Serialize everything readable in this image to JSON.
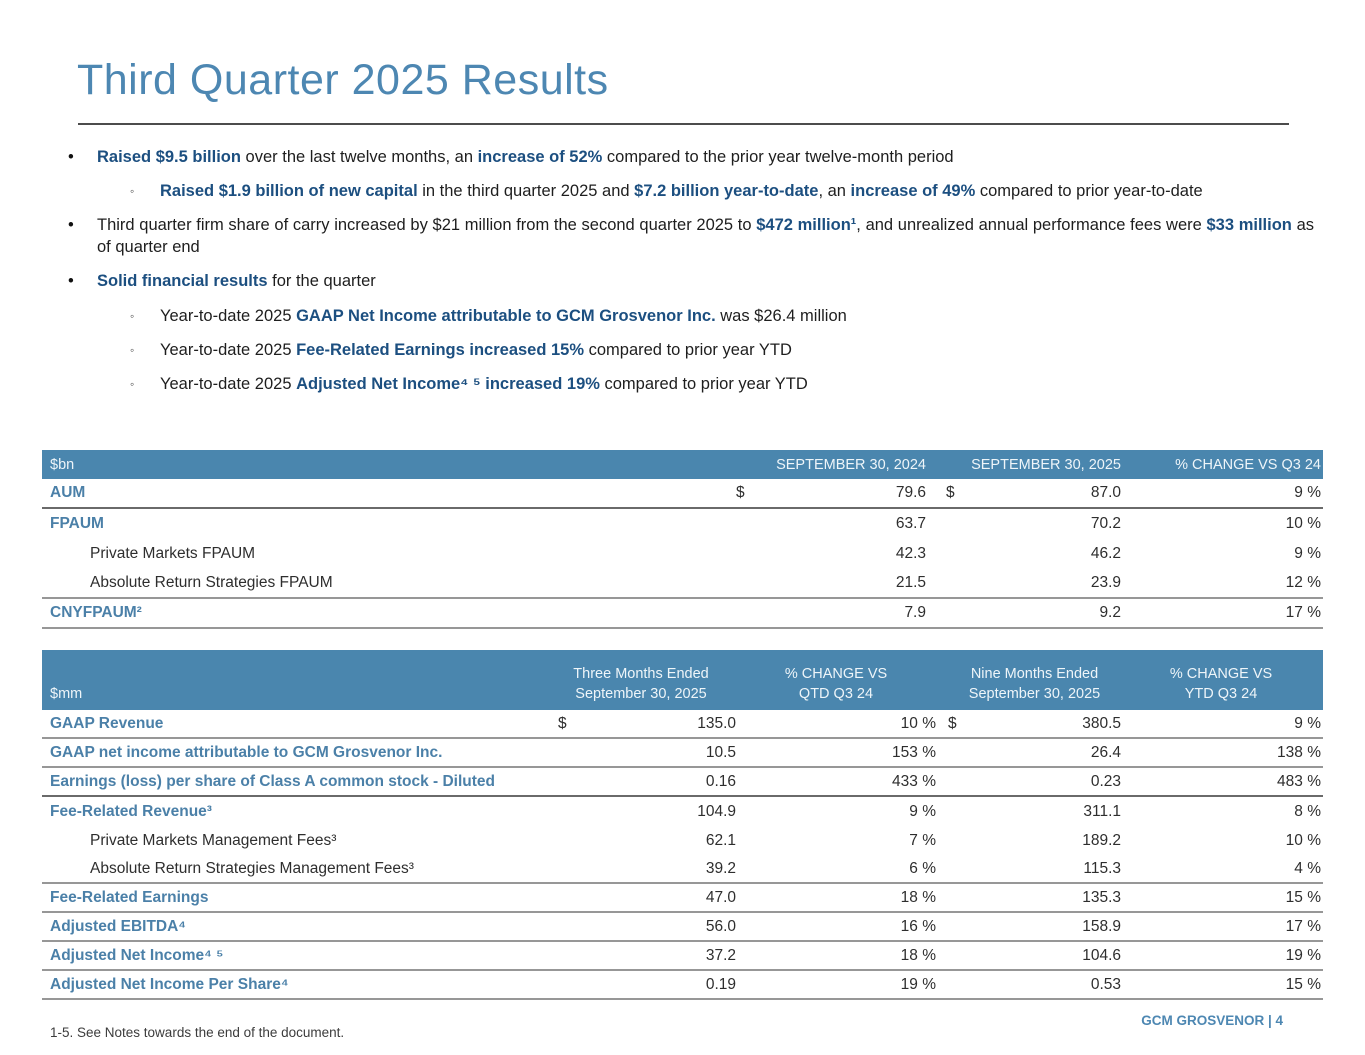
{
  "page": {
    "title": "Third Quarter 2025 Results",
    "footer_note": "1-5. See Notes towards the end of the document.",
    "footer_brand": "GCM GROSVENOR | 4"
  },
  "colors": {
    "accent_blue": "#4d87b2",
    "highlight_navy": "#1c4f80",
    "table_header_bg": "#4a86ae",
    "table_label_blue": "#4b80a8",
    "rule_gray": "#4c4c4c"
  },
  "bullet_markers": {
    "level1": "•",
    "level2": "◦"
  },
  "bullets": [
    {
      "level": 1,
      "segments": [
        {
          "t": "Raised $9.5 billion",
          "b": true
        },
        {
          "t": " over the last twelve months, an ",
          "b": false
        },
        {
          "t": "increase of 52%",
          "b": true
        },
        {
          "t": " compared to the prior year twelve-month period",
          "b": false
        }
      ]
    },
    {
      "level": 2,
      "segments": [
        {
          "t": "Raised $1.9 billion of new capital",
          "b": true
        },
        {
          "t": " in the third quarter 2025 and ",
          "b": false
        },
        {
          "t": "$7.2 billion year-to-date",
          "b": true
        },
        {
          "t": ", an ",
          "b": false
        },
        {
          "t": "increase of 49%",
          "b": true
        },
        {
          "t": " compared to prior year-to-date",
          "b": false
        }
      ]
    },
    {
      "level": 1,
      "segments": [
        {
          "t": "Third quarter firm share of carry increased by $21 million from the second quarter 2025 to ",
          "b": false
        },
        {
          "t": "$472 million¹",
          "b": true
        },
        {
          "t": ", and unrealized annual performance fees were ",
          "b": false
        },
        {
          "t": "$33 million",
          "b": true
        },
        {
          "t": " as of quarter end",
          "b": false
        }
      ]
    },
    {
      "level": 1,
      "segments": [
        {
          "t": "Solid financial results",
          "b": true
        },
        {
          "t": " for the quarter",
          "b": false
        }
      ]
    },
    {
      "level": 2,
      "segments": [
        {
          "t": "Year-to-date 2025 ",
          "b": false
        },
        {
          "t": "GAAP Net Income attributable to GCM Grosvenor Inc.",
          "b": true
        },
        {
          "t": " was $26.4 million",
          "b": false
        }
      ]
    },
    {
      "level": 2,
      "segments": [
        {
          "t": "Year-to-date 2025 ",
          "b": false
        },
        {
          "t": "Fee-Related Earnings increased 15%",
          "b": true
        },
        {
          "t": " compared to prior year YTD",
          "b": false
        }
      ]
    },
    {
      "level": 2,
      "segments": [
        {
          "t": "Year-to-date 2025 ",
          "b": false
        },
        {
          "t": "Adjusted Net Income⁴ ⁵ increased 19%",
          "b": true
        },
        {
          "t": " compared to prior year YTD",
          "b": false
        }
      ]
    }
  ],
  "table_aum": {
    "unit_label": "$bn",
    "col_headers": [
      "SEPTEMBER 30, 2024",
      "SEPTEMBER 30, 2025",
      "% CHANGE VS Q3 24"
    ],
    "rows": [
      {
        "label": "AUM",
        "bold": true,
        "indent": false,
        "d1": "$",
        "v1": "79.6",
        "d2": "$",
        "v2": "87.0",
        "pct": "9 %",
        "border": "strong"
      },
      {
        "label": "FPAUM",
        "bold": true,
        "indent": false,
        "d1": "",
        "v1": "63.7",
        "d2": "",
        "v2": "70.2",
        "pct": "10 %",
        "border": "none"
      },
      {
        "label": "Private Markets FPAUM",
        "bold": false,
        "indent": true,
        "d1": "",
        "v1": "42.3",
        "d2": "",
        "v2": "46.2",
        "pct": "9 %",
        "border": "none"
      },
      {
        "label": "Absolute Return Strategies FPAUM",
        "bold": false,
        "indent": true,
        "d1": "",
        "v1": "21.5",
        "d2": "",
        "v2": "23.9",
        "pct": "12 %",
        "border": "normal"
      },
      {
        "label": "CNYFPAUM²",
        "bold": true,
        "indent": false,
        "d1": "",
        "v1": "7.9",
        "d2": "",
        "v2": "9.2",
        "pct": "17 %",
        "border": "normal"
      }
    ]
  },
  "table_financials": {
    "unit_label": "$mm",
    "col_headers": [
      {
        "line1": "Three Months Ended",
        "line2": "September 30, 2025"
      },
      {
        "line1": "% CHANGE VS",
        "line2": "QTD Q3 24"
      },
      {
        "line1": "Nine Months Ended",
        "line2": "September 30, 2025"
      },
      {
        "line1": "% CHANGE VS",
        "line2": "YTD Q3 24"
      }
    ],
    "rows": [
      {
        "label": "GAAP Revenue",
        "bold": true,
        "indent": false,
        "d1": "$",
        "v1": "135.0",
        "p1": "10 %",
        "d2": "$",
        "v2": "380.5",
        "p2": "9 %",
        "border": "normal"
      },
      {
        "label": "GAAP net income attributable to GCM Grosvenor Inc.",
        "bold": true,
        "indent": false,
        "d1": "",
        "v1": "10.5",
        "p1": "153 %",
        "d2": "",
        "v2": "26.4",
        "p2": "138 %",
        "border": "normal"
      },
      {
        "label": "Earnings (loss) per share of Class A common stock - Diluted",
        "bold": true,
        "indent": false,
        "d1": "",
        "v1": "0.16",
        "p1": "433 %",
        "d2": "",
        "v2": "0.23",
        "p2": "483 %",
        "border": "strong"
      },
      {
        "label": "Fee-Related Revenue³",
        "bold": true,
        "indent": false,
        "d1": "",
        "v1": "104.9",
        "p1": "9 %",
        "d2": "",
        "v2": "311.1",
        "p2": "8 %",
        "border": "none"
      },
      {
        "label": "Private Markets Management Fees³",
        "bold": false,
        "indent": true,
        "d1": "",
        "v1": "62.1",
        "p1": "7 %",
        "d2": "",
        "v2": "189.2",
        "p2": "10 %",
        "border": "none"
      },
      {
        "label": "Absolute Return Strategies Management Fees³",
        "bold": false,
        "indent": true,
        "d1": "",
        "v1": "39.2",
        "p1": "6 %",
        "d2": "",
        "v2": "115.3",
        "p2": "4 %",
        "border": "normal"
      },
      {
        "label": "Fee-Related Earnings",
        "bold": true,
        "indent": false,
        "d1": "",
        "v1": "47.0",
        "p1": "18 %",
        "d2": "",
        "v2": "135.3",
        "p2": "15 %",
        "border": "normal"
      },
      {
        "label": "Adjusted EBITDA⁴",
        "bold": true,
        "indent": false,
        "d1": "",
        "v1": "56.0",
        "p1": "16 %",
        "d2": "",
        "v2": "158.9",
        "p2": "17 %",
        "border": "normal"
      },
      {
        "label": "Adjusted Net Income⁴ ⁵",
        "bold": true,
        "indent": false,
        "d1": "",
        "v1": "37.2",
        "p1": "18 %",
        "d2": "",
        "v2": "104.6",
        "p2": "19 %",
        "border": "normal"
      },
      {
        "label": "Adjusted Net Income Per Share⁴",
        "bold": true,
        "indent": false,
        "d1": "",
        "v1": "0.19",
        "p1": "19 %",
        "d2": "",
        "v2": "0.53",
        "p2": "15 %",
        "border": "normal"
      }
    ]
  }
}
